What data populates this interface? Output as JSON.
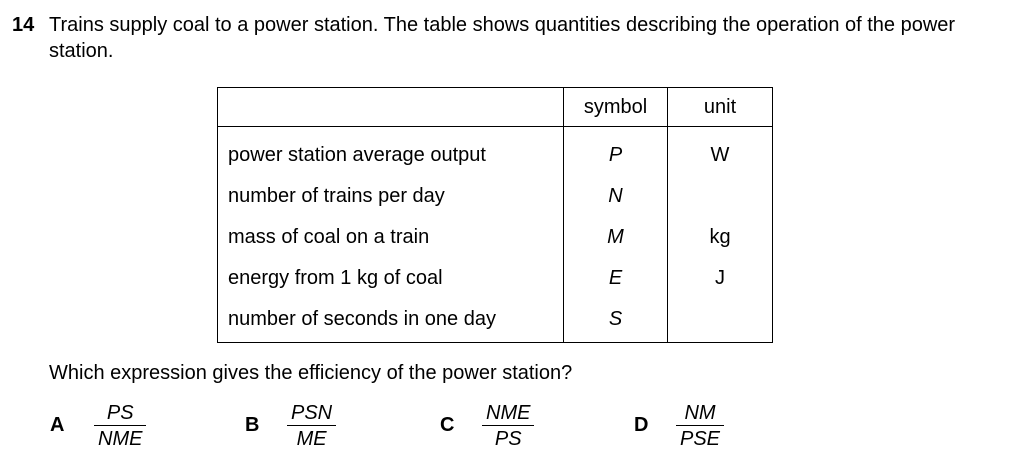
{
  "question": {
    "number": "14",
    "text": "Trains supply coal to a power station. The table shows quantities describing the operation of the power station."
  },
  "table": {
    "headers": [
      "",
      "symbol",
      "unit"
    ],
    "rows": [
      {
        "quantity": "power station average output",
        "symbol": "P",
        "unit": "W"
      },
      {
        "quantity": "number of trains per day",
        "symbol": "N",
        "unit": ""
      },
      {
        "quantity": "mass of coal on a train",
        "symbol": "M",
        "unit": "kg"
      },
      {
        "quantity": "energy from 1 kg of coal",
        "symbol": "E",
        "unit": "J"
      },
      {
        "quantity": "number of seconds in one day",
        "symbol": "S",
        "unit": ""
      }
    ]
  },
  "prompt": "Which expression gives the efficiency of the power station?",
  "options": [
    {
      "letter": "A",
      "numerator": "PS",
      "denominator": "NME"
    },
    {
      "letter": "B",
      "numerator": "PSN",
      "denominator": "ME"
    },
    {
      "letter": "C",
      "numerator": "NME",
      "denominator": "PS"
    },
    {
      "letter": "D",
      "numerator": "NM",
      "denominator": "PSE"
    }
  ]
}
